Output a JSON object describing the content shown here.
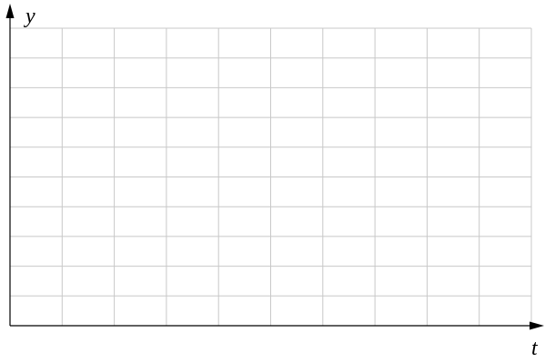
{
  "axes": {
    "x_label": "t",
    "y_label": "y"
  },
  "grid": {
    "columns": 10,
    "rows": 10,
    "visible": true
  },
  "colors": {
    "grid_line": "#c8c8c8",
    "axis": "#000000",
    "background": "#ffffff"
  }
}
